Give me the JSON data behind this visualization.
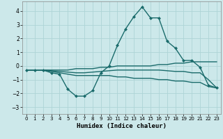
{
  "xlabel": "Humidex (Indice chaleur)",
  "background_color": "#cce8ea",
  "grid_color": "#aed4d6",
  "line_color": "#1a6b6b",
  "xlim": [
    -0.5,
    23.5
  ],
  "ylim": [
    -3.5,
    4.7
  ],
  "yticks": [
    -3,
    -2,
    -1,
    0,
    1,
    2,
    3,
    4
  ],
  "xticks": [
    0,
    1,
    2,
    3,
    4,
    5,
    6,
    7,
    8,
    9,
    10,
    11,
    12,
    13,
    14,
    15,
    16,
    17,
    18,
    19,
    20,
    21,
    22,
    23
  ],
  "lines": [
    {
      "x": [
        0,
        1,
        2,
        3,
        4,
        5,
        6,
        7,
        8,
        9,
        10,
        11,
        12,
        13,
        14,
        15,
        16,
        17,
        18,
        19,
        20,
        21,
        22,
        23
      ],
      "y": [
        -0.3,
        -0.3,
        -0.3,
        -0.5,
        -0.6,
        -1.7,
        -2.2,
        -2.2,
        -1.8,
        -0.5,
        0.0,
        1.5,
        2.7,
        3.6,
        4.3,
        3.5,
        3.5,
        1.8,
        1.3,
        0.4,
        0.4,
        -0.1,
        -1.4,
        -1.6
      ],
      "marker": "D",
      "markersize": 2.0,
      "linewidth": 1.0
    },
    {
      "x": [
        0,
        1,
        2,
        3,
        4,
        5,
        6,
        7,
        8,
        9,
        10,
        11,
        12,
        13,
        14,
        15,
        16,
        17,
        18,
        19,
        20,
        21,
        22,
        23
      ],
      "y": [
        -0.3,
        -0.3,
        -0.3,
        -0.3,
        -0.3,
        -0.3,
        -0.2,
        -0.2,
        -0.2,
        -0.1,
        -0.1,
        0.0,
        0.0,
        0.0,
        0.0,
        0.0,
        0.1,
        0.1,
        0.2,
        0.2,
        0.3,
        0.3,
        0.3,
        0.3
      ],
      "marker": null,
      "markersize": 0,
      "linewidth": 1.0
    },
    {
      "x": [
        0,
        1,
        2,
        3,
        4,
        5,
        6,
        7,
        8,
        9,
        10,
        11,
        12,
        13,
        14,
        15,
        16,
        17,
        18,
        19,
        20,
        21,
        22,
        23
      ],
      "y": [
        -0.3,
        -0.3,
        -0.3,
        -0.4,
        -0.5,
        -0.6,
        -0.7,
        -0.7,
        -0.7,
        -0.7,
        -0.7,
        -0.8,
        -0.8,
        -0.9,
        -0.9,
        -0.9,
        -1.0,
        -1.0,
        -1.1,
        -1.1,
        -1.2,
        -1.2,
        -1.5,
        -1.6
      ],
      "marker": null,
      "markersize": 0,
      "linewidth": 1.0
    },
    {
      "x": [
        0,
        1,
        2,
        3,
        4,
        5,
        6,
        7,
        8,
        9,
        10,
        11,
        12,
        13,
        14,
        15,
        16,
        17,
        18,
        19,
        20,
        21,
        22,
        23
      ],
      "y": [
        -0.3,
        -0.3,
        -0.3,
        -0.35,
        -0.4,
        -0.45,
        -0.5,
        -0.5,
        -0.45,
        -0.4,
        -0.35,
        -0.3,
        -0.3,
        -0.3,
        -0.3,
        -0.3,
        -0.3,
        -0.35,
        -0.4,
        -0.4,
        -0.5,
        -0.5,
        -1.0,
        -1.6
      ],
      "marker": null,
      "markersize": 0,
      "linewidth": 1.0
    }
  ]
}
